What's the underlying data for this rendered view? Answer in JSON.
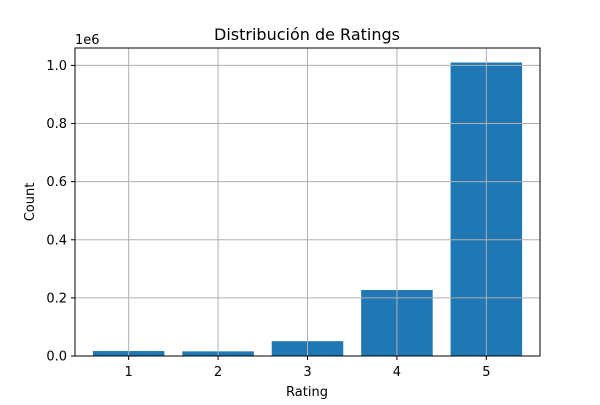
{
  "chart_data": {
    "type": "bar",
    "title": "Distribución de Ratings",
    "xlabel": "Rating",
    "ylabel": "Count",
    "y_offset_text": "1e6",
    "categories": [
      "1",
      "2",
      "3",
      "4",
      "5"
    ],
    "values": [
      17000,
      16000,
      51000,
      227000,
      1010000
    ],
    "ylim": [
      0,
      1060000
    ],
    "y_ticks": [
      0,
      200000,
      400000,
      600000,
      800000,
      1000000
    ],
    "y_tick_labels": [
      "0.0",
      "0.2",
      "0.4",
      "0.6",
      "0.8",
      "1.0"
    ],
    "grid": true,
    "colors": {
      "bar": "#1f77b4",
      "grid": "#b0b0b0",
      "axis": "#000000"
    }
  }
}
